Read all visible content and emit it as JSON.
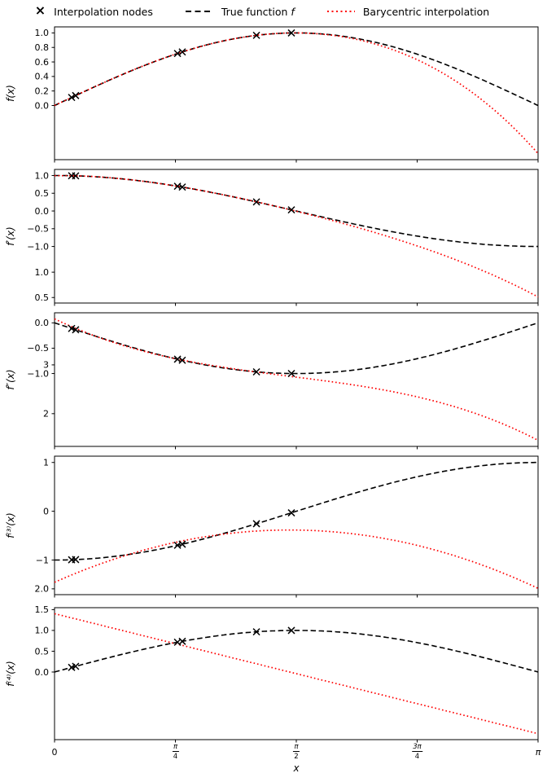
{
  "legend": {
    "marker_glyph": "×",
    "nodes_label": "Interpolation nodes",
    "true_label_prefix": "True function ",
    "true_label_f": "f",
    "interp_label": "Barycentric interpolation"
  },
  "colors": {
    "true_fn": "#000000",
    "interpolation": "#ff0000",
    "nodes": "#000000",
    "frame": "#000000"
  },
  "xlabel": "x",
  "x_ticks": {
    "values": [
      0,
      0.7853981634,
      1.5707963268,
      2.3561944902,
      3.1415926536
    ],
    "labels": [
      "0",
      "π|4",
      "π|2",
      "3π|4",
      "π"
    ]
  },
  "chart_data": [
    {
      "type": "line",
      "ylabel": "f(x)",
      "true_fn": "sin",
      "interp_derivative_order": 0,
      "xlim": [
        0,
        3.1415926536
      ],
      "y_ticks": {
        "values": [
          0.0,
          0.2,
          0.4,
          0.6,
          0.8,
          1.0
        ],
        "labels": [
          "0.0",
          "0.2",
          "0.4",
          "0.6",
          "0.8",
          "1.0"
        ]
      },
      "nodes": {
        "x": [
          0.111,
          0.137,
          0.799,
          0.83,
          1.312,
          1.539
        ],
        "y": [
          0.1108,
          0.1366,
          0.7167,
          0.7379,
          0.9667,
          0.9995
        ]
      }
    },
    {
      "type": "line",
      "ylabel": "f′(x)",
      "true_fn": "cos",
      "interp_derivative_order": 1,
      "xlim": [
        0,
        3.1415926536
      ],
      "y_ticks": {
        "values": [
          1.0,
          0.5,
          0.0,
          -0.5,
          -1.0
        ],
        "labels": [
          "1.0",
          "0.5",
          "0.0",
          "−0.5",
          "−1.0"
        ]
      },
      "nodes": {
        "x": [
          0.111,
          0.137,
          0.799,
          0.83,
          1.312,
          1.539
        ],
        "y": [
          0.9938,
          0.9906,
          0.6974,
          0.6749,
          0.2559,
          0.0318
        ]
      }
    },
    {
      "type": "line",
      "ylabel": "f″(x)",
      "true_fn": "-sin",
      "interp_derivative_order": 2,
      "xlim": [
        0,
        3.1415926536
      ],
      "y_ticks": {
        "values": [
          1.0,
          0.5,
          0.0,
          -0.5,
          -1.0
        ],
        "labels": [
          "1.0",
          "0.5",
          "0.0",
          "−0.5",
          "−1.0"
        ]
      },
      "nodes": {
        "x": [
          0.111,
          0.137,
          0.799,
          0.83,
          1.312,
          1.539
        ],
        "y": [
          -0.1108,
          -0.1366,
          -0.7167,
          -0.7379,
          -0.9667,
          -0.9995
        ]
      }
    },
    {
      "type": "line",
      "ylabel": "f⁽³⁾(x)",
      "true_fn": "-cos",
      "interp_derivative_order": 3,
      "xlim": [
        0,
        3.1415926536
      ],
      "y_ticks": {
        "values": [
          3,
          2,
          1,
          0,
          -1
        ],
        "labels": [
          "3",
          "2",
          "1",
          "0",
          "−1"
        ]
      },
      "nodes": {
        "x": [
          0.111,
          0.137,
          0.799,
          0.83,
          1.312,
          1.539
        ],
        "y": [
          -0.9938,
          -0.9906,
          -0.6974,
          -0.6749,
          -0.2559,
          -0.0318
        ]
      }
    },
    {
      "type": "line",
      "ylabel": "f⁽⁴⁾(x)",
      "true_fn": "sin",
      "interp_derivative_order": 4,
      "xlim": [
        0,
        3.1415926536
      ],
      "y_ticks": {
        "values": [
          2.0,
          1.5,
          1.0,
          0.5,
          0.0
        ],
        "labels": [
          "2.0",
          "1.5",
          "1.0",
          "0.5",
          "0.0"
        ]
      },
      "nodes": {
        "x": [
          0.111,
          0.137,
          0.799,
          0.83,
          1.312,
          1.539
        ],
        "y": [
          0.1108,
          0.1366,
          0.7167,
          0.7379,
          0.9667,
          0.9995
        ]
      }
    }
  ]
}
